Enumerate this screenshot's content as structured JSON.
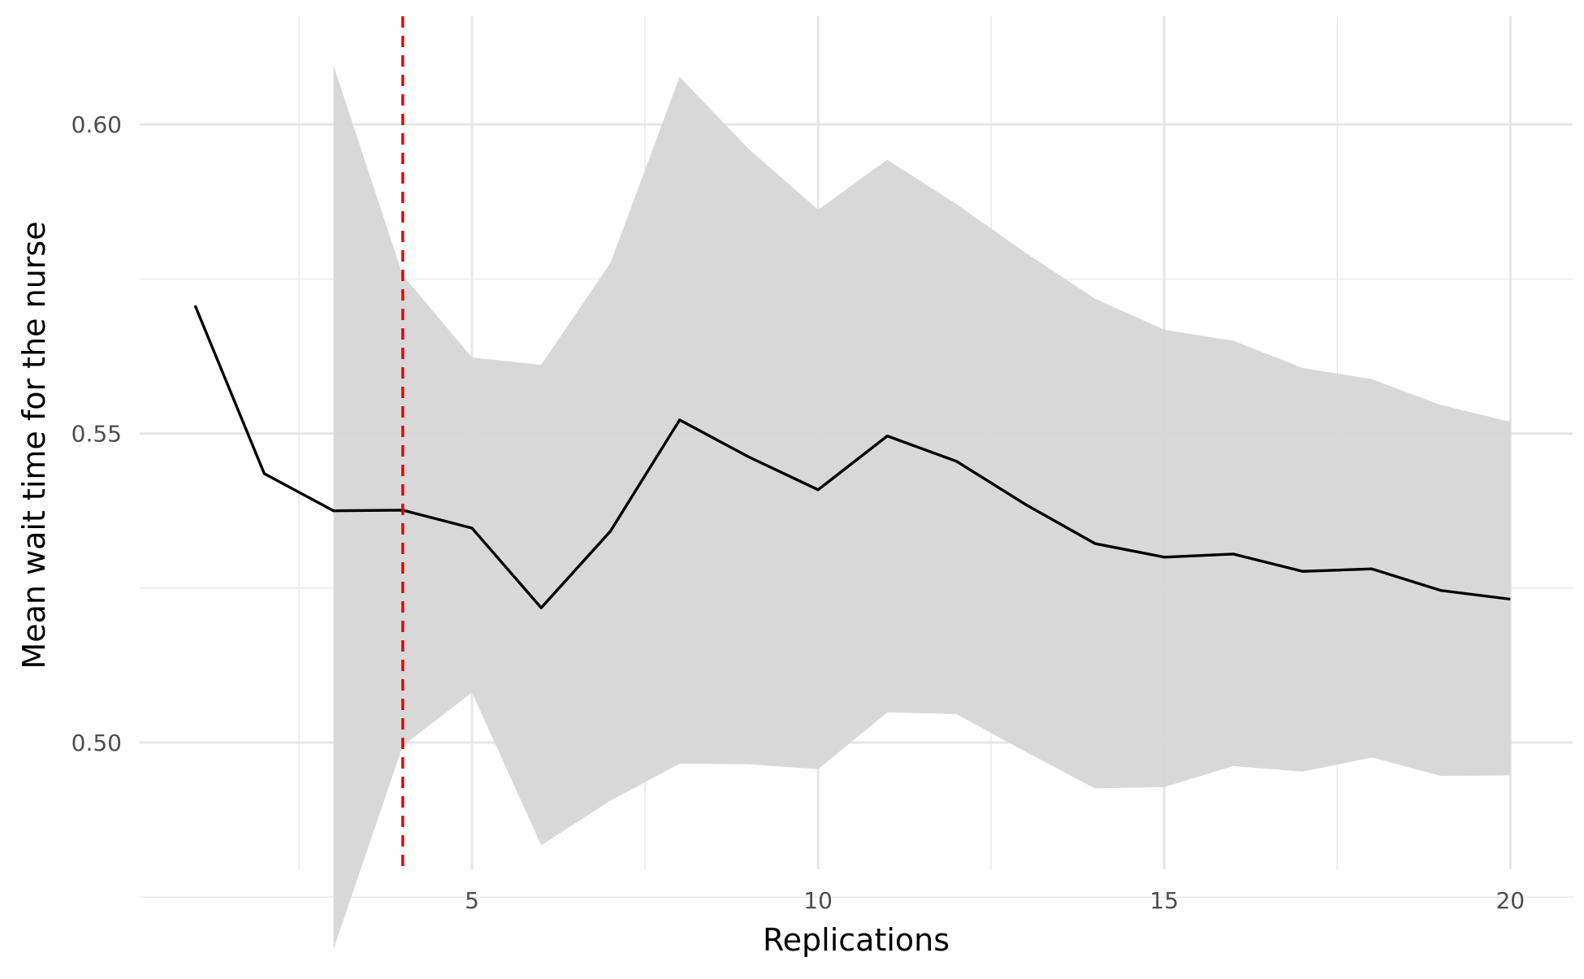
{
  "chart_data": {
    "type": "line",
    "title": "",
    "xlabel": "Replications",
    "ylabel": "Mean wait time for the nurse",
    "xlim": [
      0.2,
      20.9
    ],
    "ylim": [
      0.4795,
      0.6175
    ],
    "x_ticks": [
      5,
      10,
      15,
      20
    ],
    "x_tick_labels": [
      "5",
      "10",
      "15",
      "20"
    ],
    "y_ticks": [
      0.5,
      0.55,
      0.6
    ],
    "y_tick_labels": [
      "0.50",
      "0.55",
      "0.60"
    ],
    "x_minor_gridlines": [
      2.5,
      7.5,
      12.5,
      17.5
    ],
    "y_minor_gridlines": [
      0.475,
      0.525,
      0.575
    ],
    "grid": true,
    "legend": "none",
    "series": [
      {
        "x": [
          1,
          2,
          3,
          4,
          5,
          6,
          7,
          8,
          9,
          10,
          11,
          12,
          13,
          14,
          15,
          16,
          17,
          18,
          19,
          20
        ],
        "values": [
          0.5707,
          0.5435,
          0.5375,
          0.5376,
          0.5347,
          0.5218,
          0.5342,
          0.5522,
          0.5462,
          0.5409,
          0.5496,
          0.5455,
          0.5385,
          0.5322,
          0.53,
          0.5305,
          0.5277,
          0.5281,
          0.5246,
          0.5232
        ],
        "color": "#000000"
      }
    ],
    "confidence_band": {
      "x": [
        3,
        4,
        5,
        6,
        7,
        8,
        9,
        10,
        11,
        12,
        13,
        14,
        15,
        16,
        17,
        18,
        19,
        20
      ],
      "lower": [
        0.4666,
        0.4995,
        0.5081,
        0.4834,
        0.4906,
        0.4966,
        0.4965,
        0.4957,
        0.5049,
        0.5046,
        0.4985,
        0.4926,
        0.4928,
        0.4962,
        0.4953,
        0.4976,
        0.4946,
        0.4947
      ],
      "upper": [
        0.6095,
        0.5756,
        0.5623,
        0.5611,
        0.5776,
        0.6077,
        0.596,
        0.5862,
        0.5943,
        0.5871,
        0.5792,
        0.5718,
        0.5668,
        0.565,
        0.5606,
        0.5588,
        0.5546,
        0.5519
      ],
      "color": "#d6d6d6"
    },
    "reference_line": {
      "x": 4,
      "orientation": "vertical",
      "style": "dashed",
      "color": "#e00000"
    }
  }
}
